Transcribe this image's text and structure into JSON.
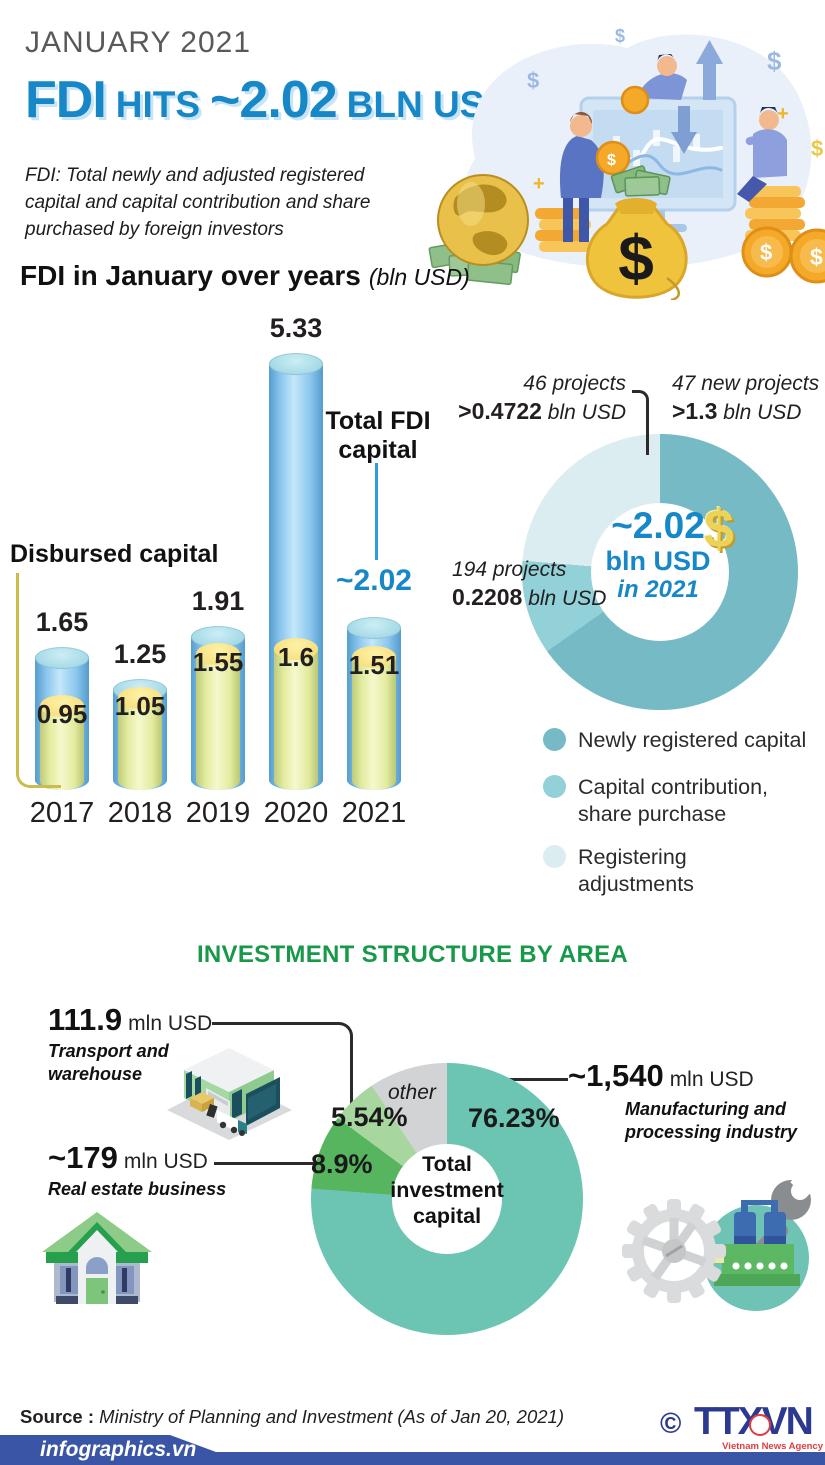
{
  "header": {
    "kicker": "JANUARY 2021",
    "title": {
      "fdi": "FDI",
      "hits": "HITS",
      "value": "~2.02",
      "unit": "BLN USD"
    },
    "note": "FDI: Total newly and adjusted registered capital and capital contribution and share purchased by foreign investors"
  },
  "chart_data": [
    {
      "id": "fdi-in-january-over-years",
      "type": "bar",
      "title": "FDI in January over years",
      "unit_label": "(bln USD)",
      "categories": [
        "2017",
        "2018",
        "2019",
        "2020",
        "2021"
      ],
      "series": [
        {
          "name": "Total FDI capital",
          "values": [
            1.65,
            1.25,
            1.91,
            5.33,
            2.02
          ],
          "labels": [
            "1.65",
            "1.25",
            "1.91",
            "5.33",
            "~2.02"
          ]
        },
        {
          "name": "Disbursed capital",
          "values": [
            0.95,
            1.05,
            1.55,
            1.6,
            1.51
          ],
          "labels": [
            "0.95",
            "1.05",
            "1.55",
            "1.6",
            "1.51"
          ]
        }
      ],
      "annotations": {
        "disbursed": "Disbursed capital",
        "total": "Total FDI capital"
      }
    },
    {
      "id": "fdi-structure-2021",
      "type": "pie",
      "center": {
        "value": "~2.02",
        "unit": "bln USD",
        "period": "in 2021",
        "dollar": "$"
      },
      "slices": [
        {
          "name": "Newly registered capital",
          "projects": "47 new projects",
          "amount_bold": ">1.3",
          "amount_unit": "bln USD",
          "pct": 64.4,
          "color": "#75bac4"
        },
        {
          "name": "Capital contribution, share purchase",
          "projects": "194 projects",
          "amount_bold": "0.2208",
          "amount_unit": "bln USD",
          "pct": 10.9,
          "color": "#92d1d8"
        },
        {
          "name": "Registering adjustments",
          "projects": "46 projects",
          "amount_bold": ">0.4722",
          "amount_unit": "bln USD",
          "pct": 23.4,
          "color": "#dcedf2"
        }
      ],
      "legend": [
        [
          "Newly registered capital"
        ],
        [
          "Capital contribution,",
          "share purchase"
        ],
        [
          "Registering",
          "adjustments"
        ]
      ],
      "legend_position": "bottom-right"
    },
    {
      "id": "investment-structure-by-area",
      "type": "pie",
      "title": "INVESTMENT STRUCTURE BY AREA",
      "center": "Total investment capital",
      "slices": [
        {
          "name": "Manufacturing and processing industry",
          "pct": 76.23,
          "pct_label": "76.23%",
          "amount_bold": "~1,540",
          "amount_unit": "mln USD",
          "color": "#6cc5b3"
        },
        {
          "name": "Real estate business",
          "pct": 8.9,
          "pct_label": "8.9%",
          "amount_bold": "~179",
          "amount_unit": "mln USD",
          "color": "#57b55f"
        },
        {
          "name": "Transport and warehouse",
          "pct": 5.54,
          "pct_label": "5.54%",
          "amount_bold": "111.9",
          "amount_unit": "mln USD",
          "color": "#a8d69f"
        },
        {
          "name": "other",
          "pct": 9.33,
          "pct_label": "other",
          "color": "#d2d3d5"
        }
      ]
    }
  ],
  "footer": {
    "source_label": "Source :",
    "source_text": " Ministry of Planning and Investment (As of Jan 20, 2021)",
    "banner": "infographics.vn",
    "copyright": "©",
    "agency": "TTXVN",
    "agency_sub": "Vietnam News Agency"
  },
  "colors": {
    "title_blue": "#1787c8",
    "section_green": "#18994a",
    "bar_total": "#8cc7ee",
    "bar_disbursed": "#e3eb9f",
    "footer_blue": "#3a55a5",
    "agency_blue": "#2b3990",
    "agency_red": "#e23b3e"
  }
}
